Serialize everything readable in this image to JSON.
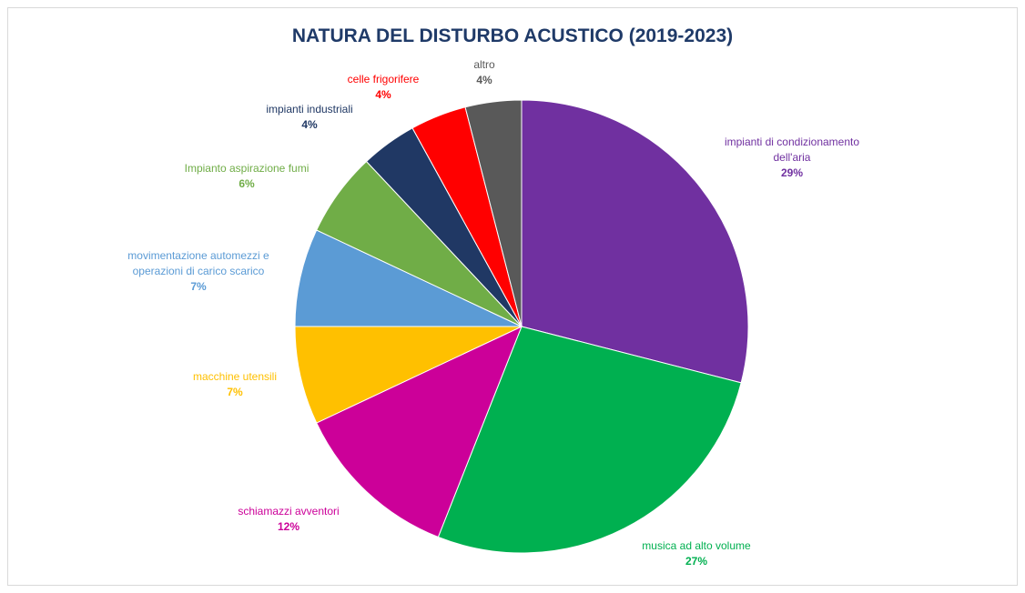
{
  "chart_data": {
    "type": "pie",
    "title": "NATURA DEL DISTURBO ACUSTICO (2019-2023)",
    "start_angle_deg": 0,
    "direction": "clockwise",
    "slices": [
      {
        "label": [
          "impianti di condizionamento",
          "dell'aria"
        ],
        "value": 29,
        "percent_label": "29%",
        "color": "#7030A0"
      },
      {
        "label": [
          "musica ad alto volume"
        ],
        "value": 27,
        "percent_label": "27%",
        "color": "#00B050"
      },
      {
        "label": [
          "schiamazzi avventori"
        ],
        "value": 12,
        "percent_label": "12%",
        "color": "#CC0099"
      },
      {
        "label": [
          "macchine utensili"
        ],
        "value": 7,
        "percent_label": "7%",
        "color": "#FFC000"
      },
      {
        "label": [
          "movimentazione automezzi e",
          "operazioni di carico scarico"
        ],
        "value": 7,
        "percent_label": "7%",
        "color": "#5B9BD5"
      },
      {
        "label": [
          "Impianto aspirazione fumi"
        ],
        "value": 6,
        "percent_label": "6%",
        "color": "#70AD47"
      },
      {
        "label": [
          "impianti industriali"
        ],
        "value": 4,
        "percent_label": "4%",
        "color": "#203864"
      },
      {
        "label": [
          "celle frigorifere"
        ],
        "value": 4,
        "percent_label": "4%",
        "color": "#FF0000"
      },
      {
        "label": [
          "altro"
        ],
        "value": 4,
        "percent_label": "4%",
        "color": "#595959"
      }
    ],
    "label_colors": [
      "#7030A0",
      "#00B050",
      "#CC0099",
      "#FFC000",
      "#5B9BD5",
      "#70AD47",
      "#203864",
      "#FF0000",
      "#595959"
    ]
  }
}
